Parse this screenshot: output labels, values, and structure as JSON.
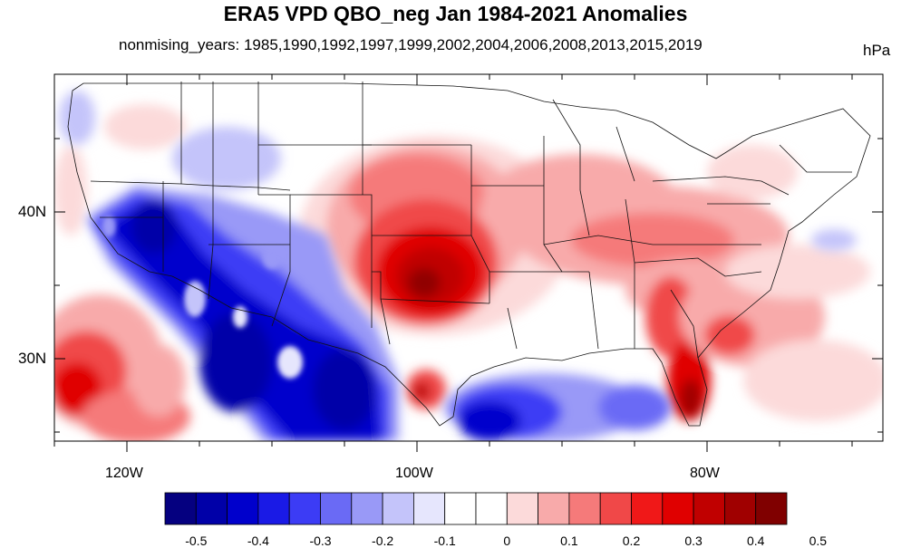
{
  "title": "ERA5 VPD QBO_neg Jan 1984-2021 Anomalies",
  "subtitle": "nonmising_years: 1985,1990,1992,1997,1999,2002,2004,2006,2008,2013,2015,2019",
  "units": "hPa",
  "lat_labels": [
    "40N",
    "30N"
  ],
  "lon_labels": [
    "120W",
    "100W",
    "80W"
  ],
  "colorbar": {
    "tick_labels": [
      "-0.5",
      "-0.4",
      "-0.3",
      "-0.2",
      "-0.1",
      "0",
      "0.1",
      "0.2",
      "0.3",
      "0.4",
      "0.5"
    ],
    "colors": [
      "#050080",
      "#0000a8",
      "#0000cc",
      "#1a1ae6",
      "#3c3cf5",
      "#6a6af5",
      "#9999f7",
      "#c4c4fa",
      "#e6e6fd",
      "#ffffff",
      "#ffffff",
      "#fcdada",
      "#f8aaaa",
      "#f57a7a",
      "#f04848",
      "#f01818",
      "#e00000",
      "#c00000",
      "#a00000",
      "#800000"
    ]
  },
  "colors": {
    "strong_negative": "#0000cc",
    "strong_positive": "#cc0000",
    "neutral": "#ffffff"
  },
  "map_region": "Contiguous United States"
}
